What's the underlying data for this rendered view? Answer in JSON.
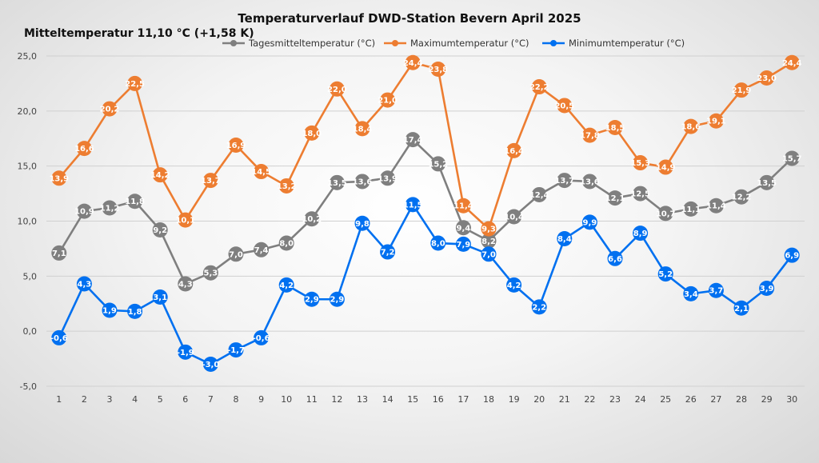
{
  "chart_data": {
    "type": "line",
    "title": "Temperaturverlauf  DWD-Station  Bevern April 2025",
    "subtitle": "Mitteltemperatur 11,10 °C (+1,58 K)",
    "xlabel": "",
    "ylabel": "",
    "ylim": [
      -5,
      25
    ],
    "yticks": [
      -5,
      0,
      5,
      10,
      15,
      20,
      25
    ],
    "ytick_labels": [
      "-5,0",
      "0,0",
      "5,0",
      "10,0",
      "15,0",
      "20,0",
      "25,0"
    ],
    "grid": true,
    "legend_position": "top",
    "x": [
      "1",
      "2",
      "3",
      "4",
      "5",
      "6",
      "7",
      "8",
      "9",
      "10",
      "11",
      "12",
      "13",
      "14",
      "15",
      "16",
      "17",
      "18",
      "19",
      "20",
      "21",
      "22",
      "23",
      "24",
      "25",
      "26",
      "27",
      "28",
      "29",
      "30"
    ],
    "series": [
      {
        "name": "Tagesmitteltemperatur (°C)",
        "color": "#7f7f7f",
        "values": [
          7.1,
          10.9,
          11.2,
          11.8,
          9.2,
          4.3,
          5.3,
          7.0,
          7.4,
          8.0,
          10.2,
          13.5,
          13.6,
          13.9,
          17.4,
          15.2,
          9.4,
          8.2,
          10.4,
          12.4,
          13.7,
          13.6,
          12.1,
          12.5,
          10.7,
          11.1,
          11.4,
          12.2,
          13.5,
          15.7
        ],
        "labels": [
          "7,1",
          "10,9",
          "11,2",
          "11,8",
          "9,2",
          "4,3",
          "5,3",
          "7,0",
          "7,4",
          "8,0",
          "10,2",
          "13,5",
          "13,6",
          "13,9",
          "17,4",
          "15,2",
          "9,4",
          "8,2",
          "10,4",
          "12,4",
          "13,7",
          "13,6",
          "12,1",
          "12,5",
          "10,7",
          "11,1",
          "11,4",
          "12,2",
          "13,5",
          "15,7"
        ]
      },
      {
        "name": "Maximumtemperatur (°C)",
        "color": "#ed7d31",
        "values": [
          13.9,
          16.6,
          20.2,
          22.5,
          14.2,
          10.1,
          13.7,
          16.9,
          14.5,
          13.2,
          18.0,
          22.0,
          18.4,
          21.0,
          24.4,
          23.8,
          11.4,
          9.3,
          16.4,
          22.2,
          20.5,
          17.8,
          18.5,
          15.3,
          14.9,
          18.6,
          19.1,
          21.9,
          23.0,
          24.4
        ],
        "labels": [
          "13,9",
          "16,6",
          "20,2",
          "22,5",
          "14,2",
          "10,1",
          "13,7",
          "16,9",
          "14,5",
          "13,2",
          "18,0",
          "22,0",
          "18,4",
          "21,0",
          "24,4",
          "23,8",
          "11,4",
          "9,3",
          "16,4",
          "22,2",
          "20,5",
          "17,8",
          "18,5",
          "15,3",
          "14,9",
          "18,6",
          "19,1",
          "21,9",
          "23,0",
          "24,4"
        ]
      },
      {
        "name": "Minimumtemperatur (°C)",
        "color": "#0070f0",
        "values": [
          -0.6,
          4.3,
          1.9,
          1.8,
          3.1,
          -1.9,
          -3.0,
          -1.7,
          -0.6,
          4.2,
          2.9,
          2.9,
          9.8,
          7.2,
          11.5,
          8.0,
          7.9,
          7.0,
          4.2,
          2.2,
          8.4,
          9.9,
          6.6,
          8.9,
          5.2,
          3.4,
          3.7,
          2.1,
          3.9,
          6.9
        ],
        "labels": [
          "-0,6",
          "4,3",
          "1,9",
          "1,8",
          "3,1",
          "-1,9",
          "-3,0",
          "-1,7",
          "-0,6",
          "4,2",
          "2,9",
          "2,9",
          "9,8",
          "7,2",
          "11,5",
          "8,0",
          "7,9",
          "7,0",
          "4,2",
          "2,2",
          "8,4",
          "9,9",
          "6,6",
          "8,9",
          "5,2",
          "3,4",
          "3,7",
          "2,1",
          "3,9",
          "6,9"
        ]
      }
    ]
  }
}
